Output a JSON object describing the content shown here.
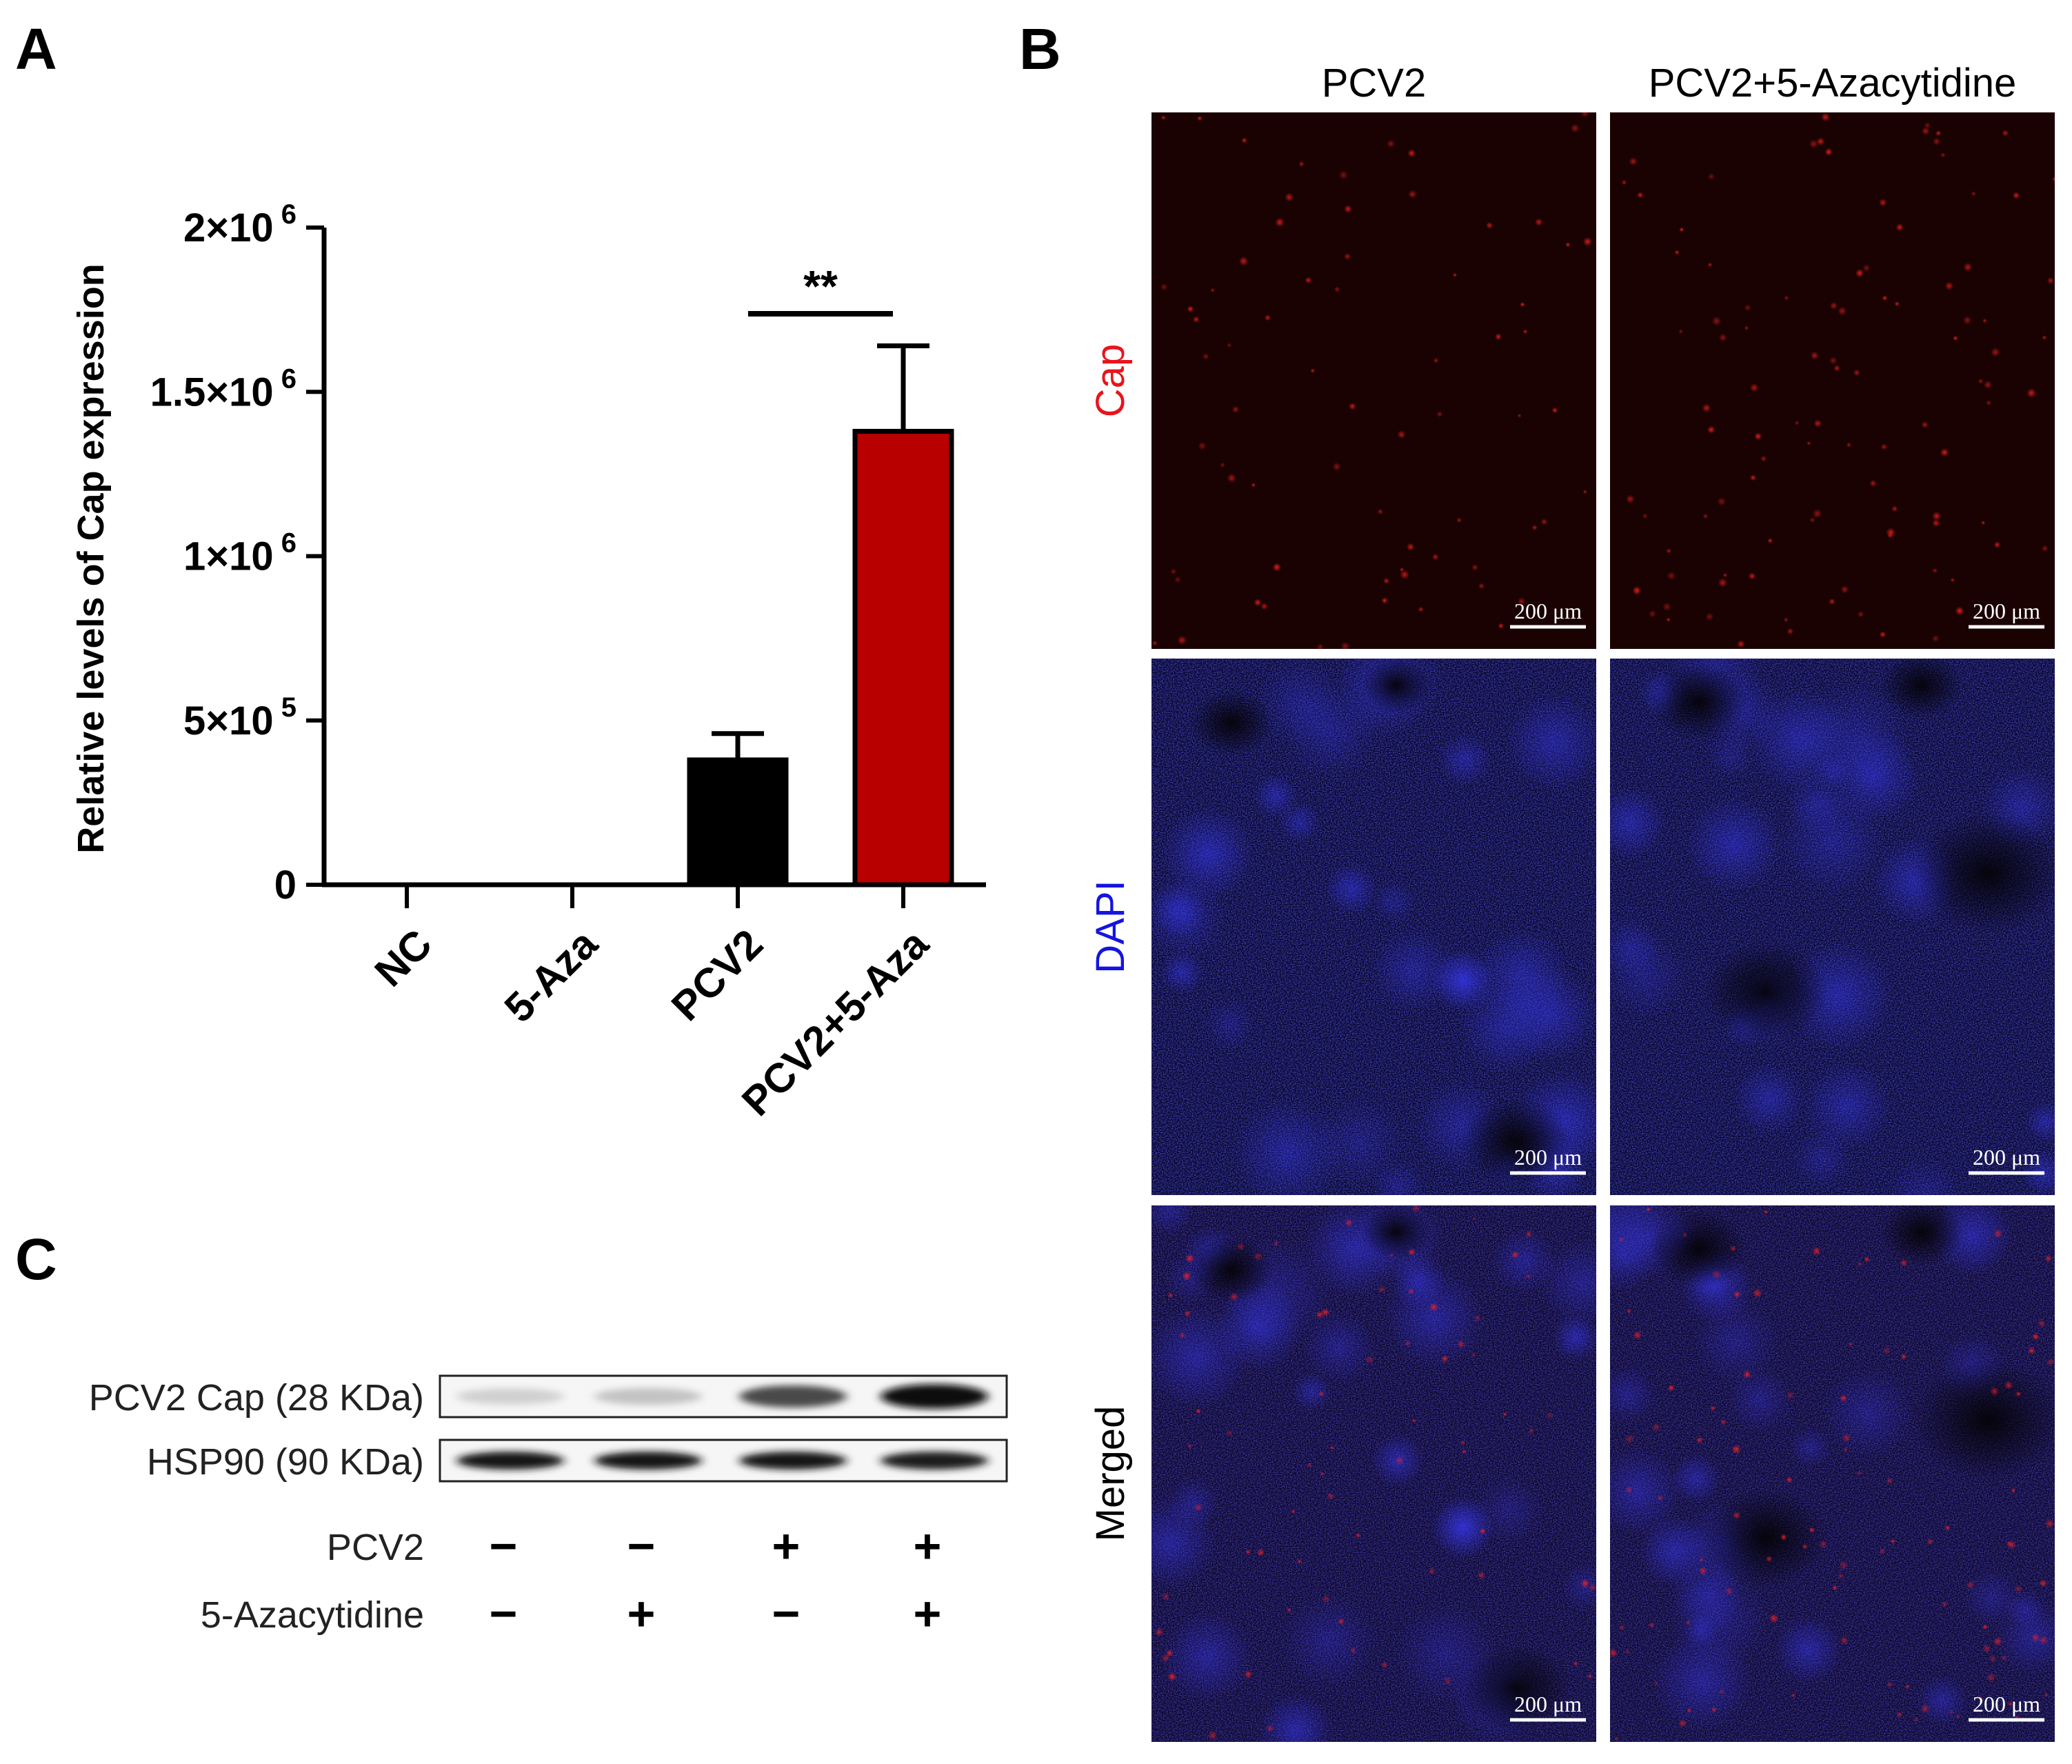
{
  "panels": {
    "A": {
      "letter": "A",
      "significance": "**",
      "chart_data": {
        "type": "bar",
        "categories": [
          "NC",
          "5-Aza",
          "PCV2",
          "PCV2+5-Aza"
        ],
        "values": [
          0,
          0,
          380000,
          1380000
        ],
        "errors": [
          0,
          0,
          80000,
          260000
        ],
        "colors": [
          "#000000",
          "#000000",
          "#000000",
          "#b80000"
        ],
        "ylabel": "Relative levels of Cap expression",
        "ylim": [
          0,
          2000000
        ],
        "yticks": [
          {
            "value": 0,
            "mantissa": "0",
            "exp": ""
          },
          {
            "value": 500000,
            "mantissa": "5×10",
            "exp": "5"
          },
          {
            "value": 1000000,
            "mantissa": "1×10",
            "exp": "6"
          },
          {
            "value": 1500000,
            "mantissa": "1.5×10",
            "exp": "6"
          },
          {
            "value": 2000000,
            "mantissa": "2×10",
            "exp": "6"
          }
        ],
        "comparison": {
          "from": "PCV2",
          "to": "PCV2+5-Aza",
          "label": "**"
        }
      }
    },
    "B": {
      "letter": "B",
      "columns": [
        "PCV2",
        "PCV2+5-Azacytidine"
      ],
      "rows": [
        {
          "label": "Cap",
          "color": "#e8141c"
        },
        {
          "label": "DAPI",
          "color": "#1414e0"
        },
        {
          "label": "Merged",
          "color": "#000000"
        }
      ],
      "scale_bar": "200 μm"
    },
    "C": {
      "letter": "C",
      "bands": [
        {
          "label": "PCV2 Cap (28 KDa)",
          "intensity": [
            0.12,
            0.18,
            0.72,
            0.98
          ]
        },
        {
          "label": "HSP90 (90 KDa)",
          "intensity": [
            0.95,
            0.95,
            0.95,
            0.92
          ]
        }
      ],
      "treatments": [
        {
          "label": "PCV2",
          "signs": [
            "−",
            "−",
            "+",
            "+"
          ]
        },
        {
          "label": "5-Azacytidine",
          "signs": [
            "−",
            "+",
            "−",
            "+"
          ]
        }
      ]
    }
  }
}
